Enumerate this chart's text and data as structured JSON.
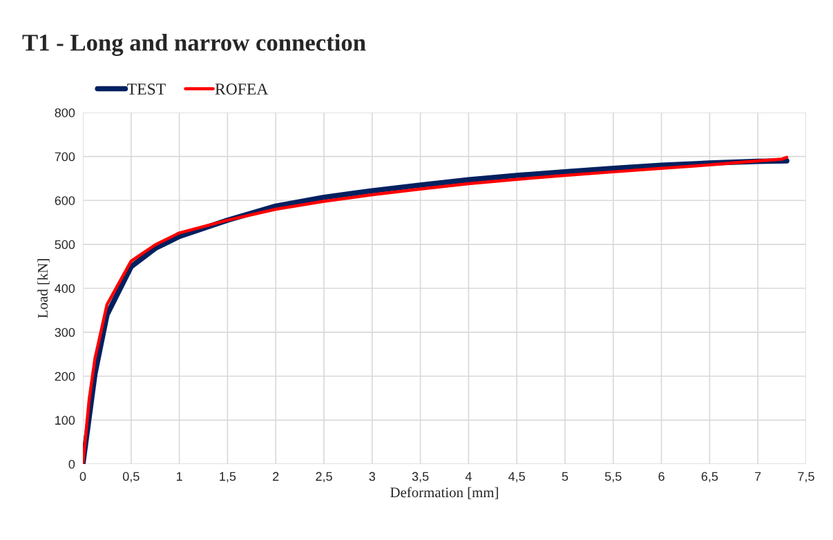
{
  "chart_data": {
    "type": "line",
    "title": "T1 - Long and narrow connection",
    "xlabel": "Deformation [mm]",
    "ylabel": "Load [kN]",
    "series": [
      {
        "name": "TEST",
        "color": "#002060",
        "x": [
          0,
          0.125,
          0.25,
          0.5,
          0.75,
          1,
          1.5,
          2,
          2.5,
          3,
          3.5,
          4,
          4.5,
          5,
          5.5,
          6,
          6.5,
          7,
          7.3
        ],
        "values": [
          0,
          205,
          340,
          449,
          491,
          518,
          555,
          587,
          607,
          622,
          635,
          647,
          657,
          665,
          673,
          680,
          685,
          689,
          690
        ]
      },
      {
        "name": "ROFEA",
        "color": "#ff0000",
        "x": [
          0,
          0.065,
          0.125,
          0.25,
          0.5,
          0.75,
          1,
          1.5,
          2,
          2.5,
          3,
          3.5,
          4,
          4.5,
          5,
          5.5,
          6,
          6.5,
          7,
          7.25,
          7.3
        ],
        "values": [
          0,
          147,
          240,
          363,
          462,
          499,
          526,
          555,
          580,
          598,
          613,
          626,
          638,
          648,
          657,
          665,
          673,
          681,
          690,
          694,
          698
        ]
      }
    ],
    "xlim": [
      0,
      7.5
    ],
    "xticks": [
      0,
      {
        "value": 0.5,
        "label": "0,5"
      },
      1,
      {
        "value": 1.5,
        "label": "1,5"
      },
      2,
      {
        "value": 2.5,
        "label": "2,5"
      },
      3,
      {
        "value": 3.5,
        "label": "3,5"
      },
      4,
      {
        "value": 4.5,
        "label": "4,5"
      },
      5,
      {
        "value": 5.5,
        "label": "5,5"
      },
      6,
      {
        "value": 6.5,
        "label": "6,5"
      },
      7,
      {
        "value": 7.5,
        "label": "7,5"
      }
    ],
    "ylim": [
      0,
      800
    ],
    "yticks": [
      0,
      100,
      200,
      300,
      400,
      500,
      600,
      700,
      800
    ],
    "grid": true,
    "legend": "top left",
    "marker": "none",
    "line_style": "solid"
  }
}
